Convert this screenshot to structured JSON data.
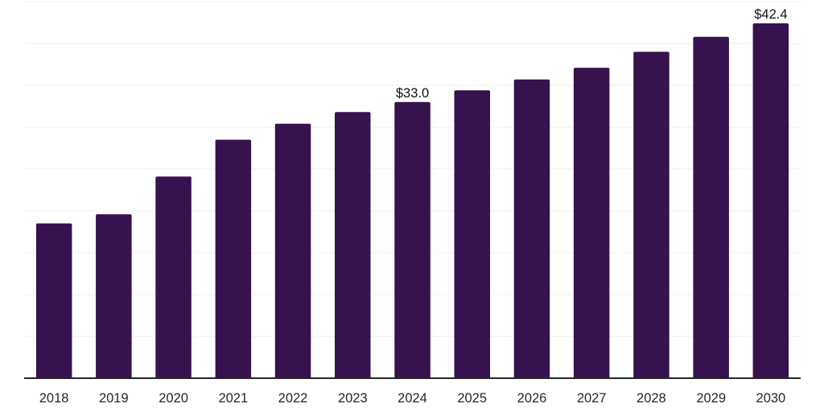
{
  "chart_data": {
    "type": "bar",
    "title": "",
    "xlabel": "",
    "ylabel": "",
    "categories": [
      "2018",
      "2019",
      "2020",
      "2021",
      "2022",
      "2023",
      "2024",
      "2025",
      "2026",
      "2027",
      "2028",
      "2029",
      "2030"
    ],
    "values": [
      18.5,
      19.6,
      24.1,
      28.5,
      30.4,
      31.8,
      33.0,
      34.4,
      35.7,
      37.1,
      39.0,
      40.8,
      42.4
    ],
    "data_labels": {
      "2024": "$33.0",
      "2030": "$42.4"
    },
    "ylim": [
      0,
      45
    ],
    "gridline_step": 5,
    "grid": "horizontal-only",
    "legend": "none",
    "colors": {
      "bar": "#36124E",
      "gridline": "#f4f4f4",
      "axis_line": "#262626",
      "tick_label": "#262626",
      "data_label": "#111111",
      "background": "#ffffff"
    }
  }
}
